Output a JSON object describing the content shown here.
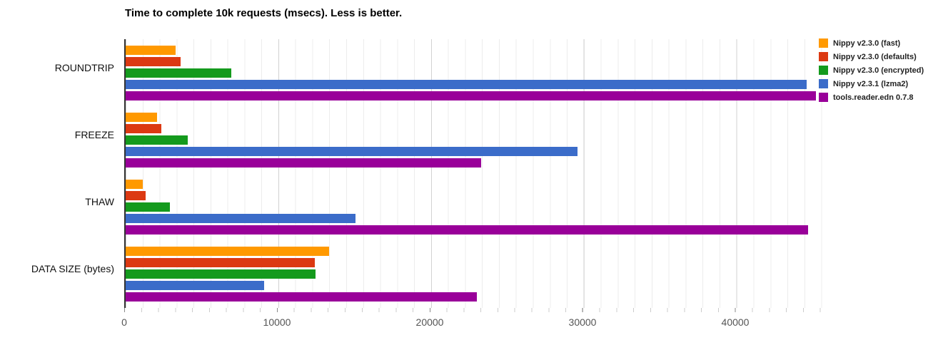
{
  "chart_data": {
    "type": "bar",
    "orientation": "horizontal",
    "title": "Time to complete 10k requests (msecs). Less is better.",
    "categories": [
      "ROUNDTRIP",
      "FREEZE",
      "THAW",
      "DATA SIZE (bytes)"
    ],
    "series": [
      {
        "name": "Nippy v2.3.0 (fast)",
        "color": "#FF9900",
        "values": [
          3250,
          2050,
          1120,
          13300
        ]
      },
      {
        "name": "Nippy v2.3.0 (defaults)",
        "color": "#DC3912",
        "values": [
          3600,
          2350,
          1300,
          12400
        ]
      },
      {
        "name": "Nippy v2.3.0 (encrypted)",
        "color": "#149A1D",
        "values": [
          6900,
          4050,
          2900,
          12450
        ]
      },
      {
        "name": "Nippy v2.3.1 (lzma2)",
        "color": "#3B6CC9",
        "values": [
          44600,
          29600,
          15050,
          9060
        ]
      },
      {
        "name": "tools.reader.edn 0.7.8",
        "color": "#990099",
        "values": [
          45200,
          23250,
          44650,
          23000
        ]
      }
    ],
    "xlabel": "",
    "ylabel": "",
    "x_ticks": [
      "0",
      "10000",
      "20000",
      "30000",
      "40000"
    ],
    "x_tick_values": [
      0,
      10000,
      20000,
      30000,
      40000
    ],
    "xlim": [
      0,
      45840
    ],
    "grid": true,
    "legend_position": "right",
    "axis_color": "#333333",
    "gridline_minor_color": "#ececec",
    "gridline_major_color": "#d2d2d2"
  }
}
